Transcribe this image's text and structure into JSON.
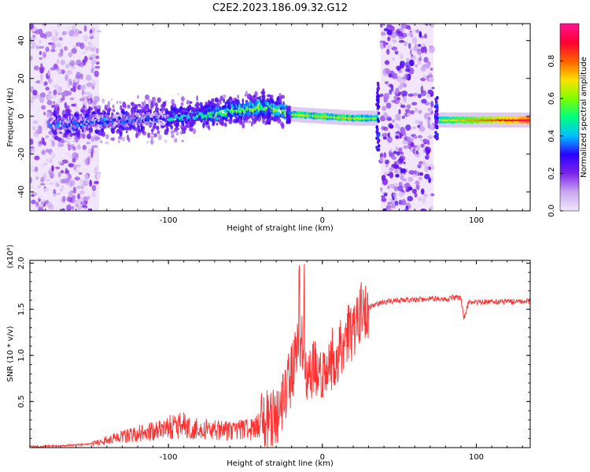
{
  "title": "C2E2.2023.186.09.32.G12",
  "chart_data": [
    {
      "type": "heatmap",
      "xlabel": "Height of straight line (km)",
      "ylabel": "Frequency (Hz)",
      "xlim": [
        -190,
        135
      ],
      "ylim": [
        -50,
        49
      ],
      "xticks": [
        -100,
        0,
        100
      ],
      "yticks": [
        -40,
        -20,
        0,
        20,
        40
      ],
      "colorbar": {
        "label": "Normalized spectral amplitude",
        "range": [
          0,
          1
        ],
        "ticks": [
          0.0,
          0.2,
          0.4,
          0.6,
          0.8
        ],
        "tick_labels": [
          "0.0",
          "0.2",
          "0.4",
          "0.6",
          "0.8"
        ],
        "colormap": [
          "#f2e6fb",
          "#c9a8f0",
          "#7e24ea",
          "#2b00ff",
          "#00c0ff",
          "#00ff80",
          "#7fff00",
          "#ffe000",
          "#ff6000",
          "#ff0033",
          "#ff1493"
        ]
      },
      "features": {
        "noise_bands_km": [
          [
            -190,
            -145
          ],
          [
            38,
            72
          ]
        ],
        "ridge": [
          {
            "x": -175,
            "y": -4
          },
          {
            "x": -150,
            "y": -3
          },
          {
            "x": -125,
            "y": -2
          },
          {
            "x": -100,
            "y": -1
          },
          {
            "x": -75,
            "y": 1
          },
          {
            "x": -55,
            "y": 3
          },
          {
            "x": -40,
            "y": 5
          },
          {
            "x": -30,
            "y": 4
          },
          {
            "x": -20,
            "y": 1
          },
          {
            "x": 0,
            "y": 0
          },
          {
            "x": 20,
            "y": -1
          },
          {
            "x": 35,
            "y": -1
          },
          {
            "x": 80,
            "y": -2
          },
          {
            "x": 110,
            "y": -2
          },
          {
            "x": 135,
            "y": -2
          }
        ]
      }
    },
    {
      "type": "line",
      "xlabel": "Height of straight line (km)",
      "ylabel": "SNR (10 * v/v)",
      "y_multiplier": "(x10⁴)",
      "xlim": [
        -190,
        135
      ],
      "ylim": [
        0,
        2.03
      ],
      "xticks": [
        -100,
        0,
        100
      ],
      "yticks": [
        0.5,
        1.0,
        1.5,
        2.0
      ],
      "ytick_labels": [
        "0.5",
        "1.0",
        "1.5",
        "2.0"
      ],
      "color": "#ff3030",
      "series": [
        {
          "x": [
            -190,
            -170,
            -150,
            -140,
            -120,
            -100,
            -90,
            -80,
            -60,
            -45,
            -38,
            -30,
            -25,
            -20,
            -15,
            -12,
            -10,
            -5,
            0,
            5,
            10,
            15,
            20,
            25,
            30,
            40,
            50,
            60,
            70,
            80,
            85,
            90,
            92,
            95,
            100,
            110,
            120,
            135
          ],
          "values": [
            0.01,
            0.02,
            0.04,
            0.08,
            0.15,
            0.22,
            0.25,
            0.2,
            0.18,
            0.2,
            0.3,
            0.35,
            0.55,
            0.8,
            1.25,
            1.0,
            0.8,
            0.9,
            0.82,
            0.95,
            1.05,
            1.15,
            1.3,
            1.45,
            1.52,
            1.58,
            1.6,
            1.6,
            1.62,
            1.61,
            1.63,
            1.62,
            1.4,
            1.58,
            1.58,
            1.58,
            1.58,
            1.59
          ]
        }
      ]
    }
  ]
}
